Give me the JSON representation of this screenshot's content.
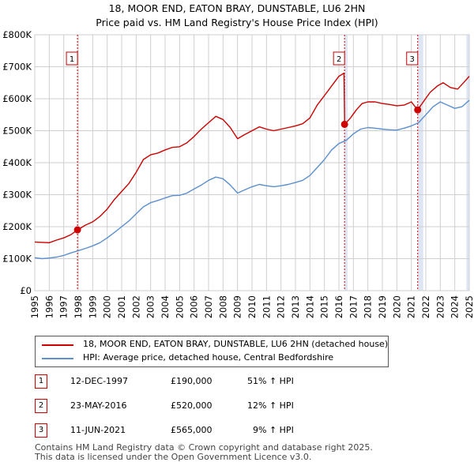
{
  "title": "18, MOOR END, EATON BRAY, DUNSTABLE, LU6 2HN",
  "subtitle": "Price paid vs. HM Land Registry's House Price Index (HPI)",
  "colors": {
    "property": "#cc0000",
    "hpi": "#5b8fd0",
    "shade": "#dde6f2",
    "grid": "#cfcfcf"
  },
  "legend": [
    {
      "label": "18, MOOR END, EATON BRAY, DUNSTABLE, LU6 2HN (detached house)",
      "color": "#cc0000"
    },
    {
      "label": "HPI: Average price, detached house, Central Bedfordshire",
      "color": "#5b8fd0"
    }
  ],
  "sales": [
    {
      "num": "1",
      "date": "12-DEC-1997",
      "price": "£190,000",
      "hpi": "51% ↑ HPI"
    },
    {
      "num": "2",
      "date": "23-MAY-2016",
      "price": "£520,000",
      "hpi": "12% ↑ HPI"
    },
    {
      "num": "3",
      "date": "11-JUN-2021",
      "price": "£565,000",
      "hpi": "9% ↑ HPI"
    }
  ],
  "footer": {
    "line1": "Contains HM Land Registry data © Crown copyright and database right 2025.",
    "line2": "This data is licensed under the Open Government Licence v3.0."
  },
  "chart_data": {
    "type": "line",
    "title": "18, MOOR END, EATON BRAY, DUNSTABLE, LU6 2HN",
    "subtitle": "Price paid vs. HM Land Registry's House Price Index (HPI)",
    "xlim": [
      1995,
      2025
    ],
    "ylim": [
      0,
      800000
    ],
    "x_ticks": [
      "1995",
      "1996",
      "1997",
      "1998",
      "1999",
      "2000",
      "2001",
      "2002",
      "2003",
      "2004",
      "2005",
      "2006",
      "2007",
      "2008",
      "2009",
      "2010",
      "2011",
      "2012",
      "2013",
      "2014",
      "2015",
      "2016",
      "2017",
      "2018",
      "2019",
      "2020",
      "2021",
      "2022",
      "2023",
      "2024",
      "2025"
    ],
    "y_ticks": [
      {
        "value": 0,
        "label": "£0"
      },
      {
        "value": 100000,
        "label": "£100K"
      },
      {
        "value": 200000,
        "label": "£200K"
      },
      {
        "value": 300000,
        "label": "£300K"
      },
      {
        "value": 400000,
        "label": "£400K"
      },
      {
        "value": 500000,
        "label": "£500K"
      },
      {
        "value": 600000,
        "label": "£600K"
      },
      {
        "value": 700000,
        "label": "£700K"
      },
      {
        "value": 800000,
        "label": "£800K"
      }
    ],
    "grid": true,
    "shaded_from": 2025.0,
    "series": [
      {
        "name": "18, MOOR END, EATON BRAY, DUNSTABLE, LU6 2HN (detached house)",
        "color": "#cc0000",
        "points": [
          [
            1995.0,
            152000
          ],
          [
            1996.0,
            150000
          ],
          [
            1996.5,
            158000
          ],
          [
            1997.0,
            165000
          ],
          [
            1997.5,
            175000
          ],
          [
            1997.95,
            190000
          ],
          [
            1998.5,
            205000
          ],
          [
            1999.0,
            215000
          ],
          [
            1999.5,
            232000
          ],
          [
            2000.0,
            255000
          ],
          [
            2000.5,
            285000
          ],
          [
            2001.0,
            310000
          ],
          [
            2001.5,
            335000
          ],
          [
            2002.0,
            370000
          ],
          [
            2002.5,
            410000
          ],
          [
            2003.0,
            425000
          ],
          [
            2003.5,
            430000
          ],
          [
            2004.0,
            440000
          ],
          [
            2004.5,
            448000
          ],
          [
            2005.0,
            450000
          ],
          [
            2005.5,
            462000
          ],
          [
            2006.0,
            482000
          ],
          [
            2006.5,
            505000
          ],
          [
            2007.0,
            525000
          ],
          [
            2007.5,
            545000
          ],
          [
            2008.0,
            535000
          ],
          [
            2008.5,
            510000
          ],
          [
            2009.0,
            475000
          ],
          [
            2009.5,
            488000
          ],
          [
            2010.0,
            500000
          ],
          [
            2010.5,
            512000
          ],
          [
            2011.0,
            505000
          ],
          [
            2011.5,
            500000
          ],
          [
            2012.0,
            505000
          ],
          [
            2012.5,
            510000
          ],
          [
            2013.0,
            515000
          ],
          [
            2013.5,
            522000
          ],
          [
            2014.0,
            540000
          ],
          [
            2014.5,
            580000
          ],
          [
            2015.0,
            610000
          ],
          [
            2015.5,
            640000
          ],
          [
            2016.0,
            670000
          ],
          [
            2016.35,
            680000
          ],
          [
            2016.4,
            520000
          ],
          [
            2016.8,
            540000
          ],
          [
            2017.2,
            565000
          ],
          [
            2017.6,
            585000
          ],
          [
            2018.0,
            590000
          ],
          [
            2018.5,
            590000
          ],
          [
            2019.0,
            585000
          ],
          [
            2019.5,
            582000
          ],
          [
            2020.0,
            578000
          ],
          [
            2020.5,
            580000
          ],
          [
            2021.0,
            590000
          ],
          [
            2021.44,
            565000
          ],
          [
            2021.9,
            595000
          ],
          [
            2022.3,
            620000
          ],
          [
            2022.8,
            640000
          ],
          [
            2023.2,
            650000
          ],
          [
            2023.7,
            635000
          ],
          [
            2024.2,
            630000
          ],
          [
            2024.6,
            650000
          ],
          [
            2025.0,
            670000
          ]
        ]
      },
      {
        "name": "HPI: Average price, detached house, Central Bedfordshire",
        "color": "#5b8fd0",
        "points": [
          [
            1995.0,
            103000
          ],
          [
            1995.5,
            100000
          ],
          [
            1996.0,
            102000
          ],
          [
            1996.5,
            105000
          ],
          [
            1997.0,
            110000
          ],
          [
            1997.5,
            118000
          ],
          [
            1998.0,
            125000
          ],
          [
            1998.5,
            132000
          ],
          [
            1999.0,
            140000
          ],
          [
            1999.5,
            150000
          ],
          [
            2000.0,
            165000
          ],
          [
            2000.5,
            182000
          ],
          [
            2001.0,
            200000
          ],
          [
            2001.5,
            218000
          ],
          [
            2002.0,
            240000
          ],
          [
            2002.5,
            262000
          ],
          [
            2003.0,
            275000
          ],
          [
            2003.5,
            282000
          ],
          [
            2004.0,
            290000
          ],
          [
            2004.5,
            297000
          ],
          [
            2005.0,
            298000
          ],
          [
            2005.5,
            305000
          ],
          [
            2006.0,
            318000
          ],
          [
            2006.5,
            330000
          ],
          [
            2007.0,
            345000
          ],
          [
            2007.5,
            355000
          ],
          [
            2008.0,
            350000
          ],
          [
            2008.5,
            330000
          ],
          [
            2009.0,
            305000
          ],
          [
            2009.5,
            315000
          ],
          [
            2010.0,
            325000
          ],
          [
            2010.5,
            332000
          ],
          [
            2011.0,
            328000
          ],
          [
            2011.5,
            325000
          ],
          [
            2012.0,
            328000
          ],
          [
            2012.5,
            332000
          ],
          [
            2013.0,
            338000
          ],
          [
            2013.5,
            345000
          ],
          [
            2014.0,
            360000
          ],
          [
            2014.5,
            385000
          ],
          [
            2015.0,
            410000
          ],
          [
            2015.5,
            440000
          ],
          [
            2016.0,
            460000
          ],
          [
            2016.5,
            470000
          ],
          [
            2017.0,
            490000
          ],
          [
            2017.5,
            505000
          ],
          [
            2018.0,
            510000
          ],
          [
            2018.5,
            508000
          ],
          [
            2019.0,
            505000
          ],
          [
            2019.5,
            503000
          ],
          [
            2020.0,
            502000
          ],
          [
            2020.5,
            508000
          ],
          [
            2021.0,
            515000
          ],
          [
            2021.5,
            525000
          ],
          [
            2022.0,
            550000
          ],
          [
            2022.5,
            575000
          ],
          [
            2023.0,
            590000
          ],
          [
            2023.5,
            580000
          ],
          [
            2024.0,
            570000
          ],
          [
            2024.5,
            575000
          ],
          [
            2025.0,
            595000
          ]
        ]
      }
    ],
    "annotations": [
      {
        "num": "1",
        "x": 1997.95,
        "y": 190000
      },
      {
        "num": "2",
        "x": 2016.39,
        "y": 520000
      },
      {
        "num": "3",
        "x": 2021.44,
        "y": 565000
      }
    ]
  }
}
